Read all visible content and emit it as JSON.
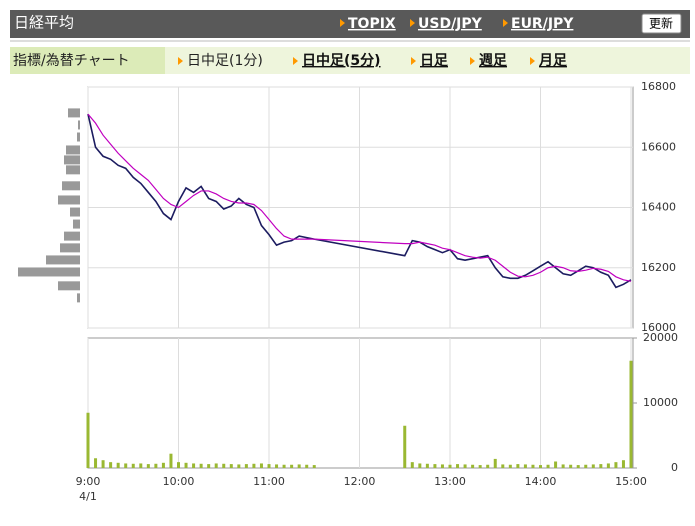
{
  "header": {
    "title": "日経平均",
    "links": [
      "TOPIX",
      "USD/JPY",
      "EUR/JPY"
    ],
    "button": "更新"
  },
  "nav": {
    "label": "指標/為替チャート",
    "tabs": [
      "日中足(1分)",
      "日中足(5分)",
      "日足",
      "週足",
      "月足"
    ]
  },
  "chart_data": [
    {
      "type": "line",
      "date_label": "4/1",
      "x": [
        "9:00",
        "9:05",
        "9:10",
        "9:15",
        "9:20",
        "9:25",
        "9:30",
        "9:35",
        "9:40",
        "9:45",
        "9:50",
        "9:55",
        "10:00",
        "10:05",
        "10:10",
        "10:15",
        "10:20",
        "10:25",
        "10:30",
        "10:35",
        "10:40",
        "10:45",
        "10:50",
        "10:55",
        "11:00",
        "11:05",
        "11:10",
        "11:15",
        "11:20",
        "11:25",
        "11:30",
        "12:30",
        "12:35",
        "12:40",
        "12:45",
        "12:50",
        "12:55",
        "13:00",
        "13:05",
        "13:10",
        "13:15",
        "13:20",
        "13:25",
        "13:30",
        "13:35",
        "13:40",
        "13:45",
        "13:50",
        "13:55",
        "14:00",
        "14:05",
        "14:10",
        "14:15",
        "14:20",
        "14:25",
        "14:30",
        "14:35",
        "14:40",
        "14:45",
        "14:50",
        "14:55",
        "15:00"
      ],
      "series": [
        {
          "color": "#1c1c60",
          "values": [
            16710,
            16600,
            16570,
            16560,
            16540,
            16530,
            16500,
            16480,
            16450,
            16420,
            16380,
            16360,
            16420,
            16465,
            16450,
            16470,
            16430,
            16420,
            16395,
            16405,
            16430,
            16410,
            16400,
            16340,
            16310,
            16275,
            16285,
            16290,
            16305,
            16300,
            16295,
            16240,
            16290,
            16285,
            16270,
            16260,
            16250,
            16260,
            16230,
            16225,
            16230,
            16235,
            16240,
            16200,
            16170,
            16165,
            16165,
            16175,
            16190,
            16205,
            16220,
            16200,
            16180,
            16175,
            16190,
            16205,
            16200,
            16185,
            16175,
            16135,
            16145,
            16160
          ]
        },
        {
          "color": "#c000c0",
          "values": [
            16710,
            16680,
            16640,
            16610,
            16580,
            16555,
            16530,
            16510,
            16490,
            16460,
            16430,
            16410,
            16400,
            16420,
            16440,
            16455,
            16455,
            16445,
            16430,
            16420,
            16415,
            16415,
            16410,
            16390,
            16360,
            16330,
            16305,
            16295,
            16295,
            16295,
            16295,
            16280,
            16280,
            16285,
            16280,
            16275,
            16265,
            16260,
            16250,
            16240,
            16235,
            16232,
            16235,
            16225,
            16205,
            16185,
            16172,
            16170,
            16175,
            16185,
            16200,
            16205,
            16200,
            16190,
            16188,
            16192,
            16198,
            16195,
            16188,
            16170,
            16160,
            16155
          ]
        }
      ],
      "ylim": [
        16000,
        16800
      ],
      "yticks": [
        16000,
        16200,
        16400,
        16600,
        16800
      ],
      "xlim": [
        "9:00",
        "15:00"
      ],
      "xticks": [
        "9:00",
        "10:00",
        "11:00",
        "12:00",
        "13:00",
        "14:00",
        "15:00"
      ],
      "grid": true,
      "profile": {
        "color": "#999999",
        "bins": [
          16714,
          16674,
          16634,
          16591,
          16558,
          16525,
          16472,
          16425,
          16385,
          16345,
          16305,
          16266,
          16226,
          16186,
          16140,
          16100
        ],
        "values": [
          12,
          2,
          3,
          14,
          16,
          14,
          18,
          22,
          10,
          7,
          16,
          20,
          34,
          62,
          22,
          3
        ]
      }
    },
    {
      "type": "bar",
      "color": "#9ab832",
      "x": [
        "9:00",
        "9:05",
        "9:10",
        "9:15",
        "9:20",
        "9:25",
        "9:30",
        "9:35",
        "9:40",
        "9:45",
        "9:50",
        "9:55",
        "10:00",
        "10:05",
        "10:10",
        "10:15",
        "10:20",
        "10:25",
        "10:30",
        "10:35",
        "10:40",
        "10:45",
        "10:50",
        "10:55",
        "11:00",
        "11:05",
        "11:10",
        "11:15",
        "11:20",
        "11:25",
        "11:30",
        "12:30",
        "12:35",
        "12:40",
        "12:45",
        "12:50",
        "12:55",
        "13:00",
        "13:05",
        "13:10",
        "13:15",
        "13:20",
        "13:25",
        "13:30",
        "13:35",
        "13:40",
        "13:45",
        "13:50",
        "13:55",
        "14:00",
        "14:05",
        "14:10",
        "14:15",
        "14:20",
        "14:25",
        "14:30",
        "14:35",
        "14:40",
        "14:45",
        "14:50",
        "14:55",
        "15:00"
      ],
      "values": [
        8500,
        1500,
        1200,
        900,
        800,
        700,
        650,
        700,
        600,
        650,
        800,
        2200,
        900,
        800,
        700,
        650,
        600,
        700,
        650,
        600,
        550,
        600,
        650,
        700,
        600,
        550,
        500,
        500,
        550,
        500,
        450,
        6500,
        900,
        700,
        650,
        600,
        550,
        500,
        600,
        550,
        500,
        450,
        500,
        1400,
        550,
        500,
        600,
        550,
        500,
        450,
        500,
        1000,
        550,
        500,
        450,
        500,
        550,
        600,
        700,
        900,
        1200,
        16500
      ],
      "ylim": [
        0,
        20000
      ],
      "yticks": [
        0,
        10000,
        20000
      ]
    }
  ]
}
